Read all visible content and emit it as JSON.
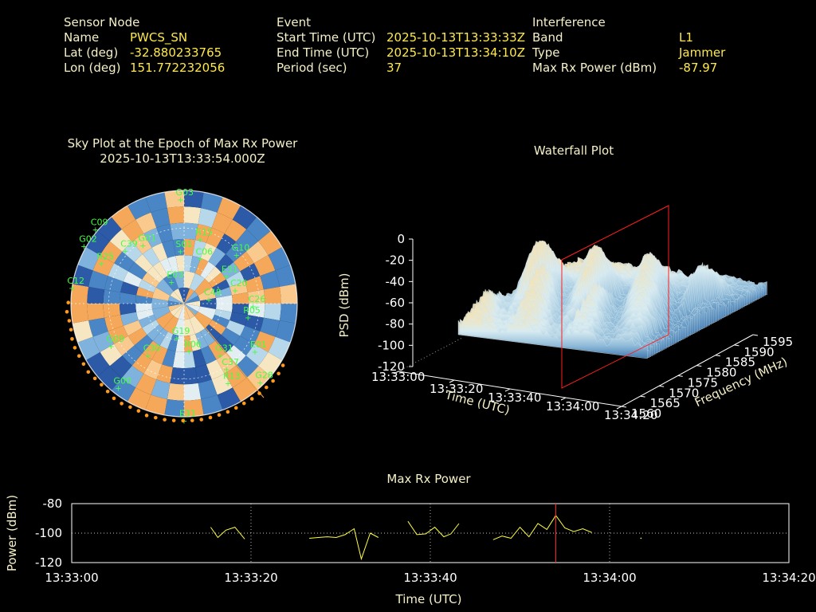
{
  "info": {
    "sensor": {
      "header": "Sensor Node",
      "rows": [
        {
          "label": "Name",
          "value": "PWCS_SN"
        },
        {
          "label": "Lat (deg)",
          "value": "-32.880233765"
        },
        {
          "label": "Lon (deg)",
          "value": "151.772232056"
        }
      ]
    },
    "event": {
      "header": "Event",
      "rows": [
        {
          "label": "Start Time (UTC)",
          "value": "2025-10-13T13:33:33Z"
        },
        {
          "label": "End Time (UTC)",
          "value": "2025-10-13T13:34:10Z"
        },
        {
          "label": "Period (sec)",
          "value": "37"
        }
      ]
    },
    "interference": {
      "header": "Interference",
      "rows": [
        {
          "label": "Band",
          "value": "L1"
        },
        {
          "label": "Type",
          "value": "Jammer"
        },
        {
          "label": "Max Rx Power (dBm)",
          "value": "-87.97"
        }
      ]
    }
  },
  "chart_data": [
    {
      "type": "scatter",
      "subtype": "polar-sky-plot",
      "title": "Sky Plot at the Epoch of Max Rx Power",
      "subtitle": "2025-10-13T13:33:54.000Z",
      "satellites": [
        {
          "name": "G03",
          "az": 358,
          "el": 83
        },
        {
          "name": "R15",
          "az": 14,
          "el": 53
        },
        {
          "name": "G01",
          "az": 325,
          "el": 57
        },
        {
          "name": "C09",
          "az": 310,
          "el": 92
        },
        {
          "name": "G02",
          "az": 300,
          "el": 92
        },
        {
          "name": "R25",
          "az": 296,
          "el": 73
        },
        {
          "name": "C39",
          "az": 312,
          "el": 63
        },
        {
          "name": "S01",
          "az": 356,
          "el": 42
        },
        {
          "name": "C06",
          "az": 20,
          "el": 38
        },
        {
          "name": "G10",
          "az": 47,
          "el": 57
        },
        {
          "name": "C12",
          "az": 278,
          "el": 90
        },
        {
          "name": "E03",
          "az": 330,
          "el": 20
        },
        {
          "name": "E31",
          "az": 57,
          "el": 40
        },
        {
          "name": "C20",
          "az": 75,
          "el": 42
        },
        {
          "name": "C48",
          "az": 80,
          "el": 20
        },
        {
          "name": "C26",
          "az": 92,
          "el": 55
        },
        {
          "name": "R05",
          "az": 102,
          "el": 52
        },
        {
          "name": "G09",
          "az": 240,
          "el": 67
        },
        {
          "name": "C30",
          "az": 215,
          "el": 50
        },
        {
          "name": "G00",
          "az": 218,
          "el": 85
        },
        {
          "name": "G19",
          "az": 192,
          "el": 28
        },
        {
          "name": "R06",
          "az": 174,
          "el": 38
        },
        {
          "name": "G31",
          "az": 145,
          "el": 50
        },
        {
          "name": "C37",
          "az": 147,
          "el": 62
        },
        {
          "name": "E01",
          "az": 124,
          "el": 68
        },
        {
          "name": "R13",
          "az": 151,
          "el": 72
        },
        {
          "name": "G28",
          "az": 136,
          "el": 87
        },
        {
          "name": "E31",
          "az": 180,
          "el": 93
        }
      ]
    },
    {
      "type": "area",
      "subtype": "3d-waterfall",
      "title": "Waterfall Plot",
      "xlabel": "Time (UTC)",
      "ylabel": "Frequency (MHz)",
      "zlabel": "PSD (dBm)",
      "x_ticks": [
        "13:33:00",
        "13:33:20",
        "13:33:40",
        "13:34:00",
        "13:34:20"
      ],
      "y_ticks": [
        "1560",
        "1565",
        "1570",
        "1575",
        "1580",
        "1585",
        "1590",
        "1595"
      ],
      "z_ticks": [
        "0",
        "-20",
        "-40",
        "-60",
        "-80",
        "-100",
        "-120"
      ],
      "zlim": [
        -120,
        0
      ],
      "marker_time": "13:33:54"
    },
    {
      "type": "line",
      "title": "Max Rx Power",
      "xlabel": "Time (UTC)",
      "ylabel": "Power (dBm)",
      "ylim": [
        -120,
        -80
      ],
      "x_ticks": [
        "13:33:00",
        "13:33:20",
        "13:33:40",
        "13:34:00",
        "13:34:20"
      ],
      "y_ticks": [
        "-80",
        "-100",
        "-120"
      ],
      "grid": true,
      "marker_time_sec": 54,
      "segments": [
        [
          [
            15.5,
            -96
          ],
          [
            16.3,
            -103
          ],
          [
            17.2,
            -98
          ],
          [
            18.2,
            -96
          ],
          [
            19.3,
            -104
          ]
        ],
        [
          [
            26.5,
            -103.5
          ],
          [
            27.5,
            -103
          ],
          [
            28.5,
            -102.5
          ],
          [
            29.5,
            -103
          ],
          [
            30.5,
            -101
          ],
          [
            31.5,
            -97
          ],
          [
            32.3,
            -117.5
          ],
          [
            33.3,
            -100
          ],
          [
            34.2,
            -103
          ]
        ],
        [
          [
            37.5,
            -92
          ],
          [
            38.5,
            -101
          ],
          [
            39.5,
            -100.5
          ],
          [
            40.5,
            -96
          ],
          [
            41.5,
            -102.5
          ],
          [
            42.3,
            -100.5
          ],
          [
            43.2,
            -93.5
          ]
        ],
        [
          [
            47.0,
            -104.5
          ],
          [
            48.0,
            -102
          ],
          [
            49.0,
            -103.5
          ],
          [
            50.0,
            -96
          ],
          [
            51.0,
            -102.5
          ],
          [
            52.0,
            -93.5
          ],
          [
            53.0,
            -97.5
          ],
          [
            54.0,
            -88
          ],
          [
            55.0,
            -96.5
          ],
          [
            56.0,
            -99
          ],
          [
            57.0,
            -97
          ],
          [
            58.0,
            -99.5
          ]
        ]
      ],
      "dots": [
        [
          63.5,
          -103.5
        ]
      ]
    }
  ]
}
